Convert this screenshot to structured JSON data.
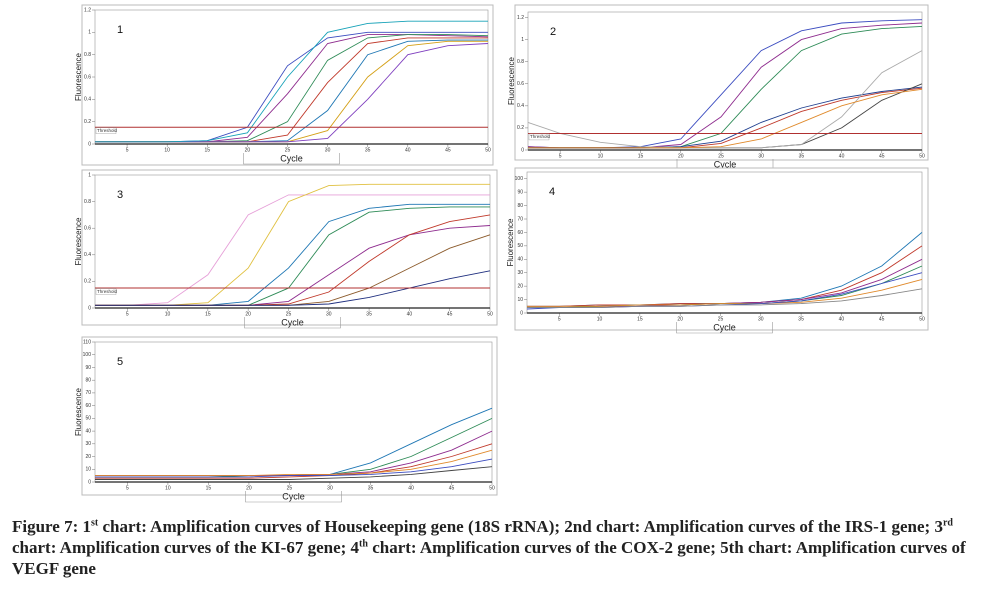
{
  "chart_data": [
    {
      "type": "line",
      "label": "1",
      "xlabel": "Cycle",
      "ylabel": "Fluorescence",
      "x": [
        1,
        5,
        10,
        15,
        20,
        25,
        30,
        35,
        40,
        45,
        50
      ],
      "xlim": [
        1,
        50
      ],
      "xticks": [
        5,
        10,
        15,
        20,
        25,
        30,
        35,
        40,
        45,
        50
      ],
      "ylim": [
        0,
        1.2
      ],
      "yticks": [
        0,
        0.2,
        0.4,
        0.6,
        0.8,
        1,
        1.2
      ],
      "threshold": {
        "value": 0.15,
        "label": "Threshold",
        "color": "#b03030"
      },
      "series": [
        {
          "color": "#3b4cc0",
          "values": [
            0.02,
            0.02,
            0.02,
            0.03,
            0.15,
            0.7,
            0.95,
            1.0,
            1.0,
            1.0,
            1.0
          ]
        },
        {
          "color": "#8e2c8e",
          "values": [
            0.02,
            0.02,
            0.02,
            0.02,
            0.06,
            0.45,
            0.9,
            0.98,
            0.98,
            0.97,
            0.96
          ]
        },
        {
          "color": "#2e8b57",
          "values": [
            0.02,
            0.02,
            0.02,
            0.02,
            0.03,
            0.2,
            0.75,
            0.95,
            0.98,
            0.98,
            0.97
          ]
        },
        {
          "color": "#c0392b",
          "values": [
            0.02,
            0.02,
            0.02,
            0.02,
            0.02,
            0.08,
            0.55,
            0.9,
            0.95,
            0.95,
            0.95
          ]
        },
        {
          "color": "#1f77b4",
          "values": [
            0.02,
            0.02,
            0.02,
            0.02,
            0.02,
            0.03,
            0.3,
            0.8,
            0.92,
            0.93,
            0.93
          ]
        },
        {
          "color": "#d4a017",
          "values": [
            0.02,
            0.02,
            0.02,
            0.02,
            0.02,
            0.02,
            0.12,
            0.6,
            0.88,
            0.92,
            0.92
          ]
        },
        {
          "color": "#7f3fbf",
          "values": [
            0.02,
            0.02,
            0.02,
            0.02,
            0.02,
            0.02,
            0.05,
            0.4,
            0.8,
            0.88,
            0.9
          ]
        },
        {
          "color": "#17a2b8",
          "values": [
            0.02,
            0.02,
            0.02,
            0.03,
            0.1,
            0.6,
            1.0,
            1.08,
            1.1,
            1.1,
            1.1
          ]
        }
      ]
    },
    {
      "type": "line",
      "label": "2",
      "xlabel": "Cycle",
      "ylabel": "Fluorescence",
      "x": [
        1,
        5,
        10,
        15,
        20,
        25,
        30,
        35,
        40,
        45,
        50
      ],
      "xlim": [
        1,
        50
      ],
      "xticks": [
        5,
        10,
        15,
        20,
        25,
        30,
        35,
        40,
        45,
        50
      ],
      "ylim": [
        0,
        1.25
      ],
      "yticks": [
        0,
        0.2,
        0.4,
        0.6,
        0.8,
        1,
        1.2
      ],
      "threshold": {
        "value": 0.15,
        "label": "Threshold",
        "color": "#b03030"
      },
      "series": [
        {
          "color": "#3b4cc0",
          "values": [
            0.03,
            0.02,
            0.02,
            0.03,
            0.1,
            0.5,
            0.9,
            1.08,
            1.15,
            1.17,
            1.18
          ]
        },
        {
          "color": "#8e2c8e",
          "values": [
            0.03,
            0.02,
            0.02,
            0.02,
            0.05,
            0.3,
            0.75,
            1.0,
            1.1,
            1.13,
            1.15
          ]
        },
        {
          "color": "#2e8b57",
          "values": [
            0.02,
            0.02,
            0.02,
            0.02,
            0.03,
            0.15,
            0.55,
            0.9,
            1.05,
            1.1,
            1.12
          ]
        },
        {
          "color": "#c0392b",
          "values": [
            0.02,
            0.02,
            0.02,
            0.02,
            0.02,
            0.06,
            0.2,
            0.35,
            0.45,
            0.52,
            0.56
          ]
        },
        {
          "color": "#1f3f8f",
          "values": [
            0.02,
            0.02,
            0.02,
            0.02,
            0.03,
            0.08,
            0.25,
            0.38,
            0.47,
            0.53,
            0.57
          ]
        },
        {
          "color": "#444444",
          "values": [
            0.02,
            0.02,
            0.02,
            0.02,
            0.02,
            0.02,
            0.02,
            0.05,
            0.2,
            0.45,
            0.6
          ]
        },
        {
          "color": "#aaaaaa",
          "values": [
            0.25,
            0.15,
            0.07,
            0.03,
            0.02,
            0.02,
            0.02,
            0.05,
            0.3,
            0.7,
            0.9
          ]
        },
        {
          "color": "#e08a2c",
          "values": [
            0.02,
            0.02,
            0.02,
            0.02,
            0.02,
            0.03,
            0.1,
            0.25,
            0.4,
            0.5,
            0.55
          ]
        }
      ]
    },
    {
      "type": "line",
      "label": "3",
      "xlabel": "Cycle",
      "ylabel": "Fluorescence",
      "x": [
        1,
        5,
        10,
        15,
        20,
        25,
        30,
        35,
        40,
        45,
        50
      ],
      "xlim": [
        1,
        50
      ],
      "xticks": [
        5,
        10,
        15,
        20,
        25,
        30,
        35,
        40,
        45,
        50
      ],
      "ylim": [
        0,
        1.0
      ],
      "yticks": [
        0,
        0.2,
        0.4,
        0.6,
        0.8,
        1
      ],
      "threshold": {
        "value": 0.15,
        "label": "Threshold",
        "color": "#b03030"
      },
      "series": [
        {
          "color": "#e6a0d8",
          "values": [
            0.02,
            0.02,
            0.04,
            0.25,
            0.7,
            0.85,
            0.85,
            0.85,
            0.85,
            0.85,
            0.85
          ]
        },
        {
          "color": "#e0c040",
          "values": [
            0.02,
            0.02,
            0.02,
            0.04,
            0.3,
            0.8,
            0.92,
            0.93,
            0.93,
            0.93,
            0.93
          ]
        },
        {
          "color": "#1f77b4",
          "values": [
            0.02,
            0.02,
            0.02,
            0.02,
            0.05,
            0.3,
            0.65,
            0.75,
            0.78,
            0.78,
            0.78
          ]
        },
        {
          "color": "#2e8b57",
          "values": [
            0.02,
            0.02,
            0.02,
            0.02,
            0.02,
            0.15,
            0.55,
            0.72,
            0.75,
            0.76,
            0.76
          ]
        },
        {
          "color": "#8e2c8e",
          "values": [
            0.02,
            0.02,
            0.02,
            0.02,
            0.02,
            0.05,
            0.25,
            0.45,
            0.55,
            0.6,
            0.62
          ]
        },
        {
          "color": "#c0392b",
          "values": [
            0.02,
            0.02,
            0.02,
            0.02,
            0.02,
            0.03,
            0.12,
            0.35,
            0.55,
            0.65,
            0.7
          ]
        },
        {
          "color": "#8b5a2b",
          "values": [
            0.02,
            0.02,
            0.02,
            0.02,
            0.02,
            0.02,
            0.05,
            0.15,
            0.3,
            0.45,
            0.55
          ]
        },
        {
          "color": "#1f2f7f",
          "values": [
            0.02,
            0.02,
            0.02,
            0.02,
            0.02,
            0.02,
            0.03,
            0.08,
            0.15,
            0.22,
            0.28
          ]
        }
      ]
    },
    {
      "type": "line",
      "label": "4",
      "xlabel": "Cycle",
      "ylabel": "Fluorescence",
      "x": [
        1,
        5,
        10,
        15,
        20,
        25,
        30,
        35,
        40,
        45,
        50
      ],
      "xlim": [
        1,
        50
      ],
      "xticks": [
        5,
        10,
        15,
        20,
        25,
        30,
        35,
        40,
        45,
        50
      ],
      "ylim": [
        0,
        105
      ],
      "yticks": [
        0,
        10,
        20,
        30,
        40,
        50,
        60,
        70,
        80,
        90,
        100
      ],
      "series": [
        {
          "color": "#1f77b4",
          "values": [
            5,
            5,
            6,
            6,
            7,
            7,
            8,
            11,
            20,
            35,
            60
          ]
        },
        {
          "color": "#c0392b",
          "values": [
            5,
            5,
            6,
            6,
            7,
            7,
            8,
            10,
            17,
            30,
            50
          ]
        },
        {
          "color": "#8e2c8e",
          "values": [
            4,
            4,
            5,
            5,
            6,
            7,
            8,
            10,
            15,
            25,
            40
          ]
        },
        {
          "color": "#2e8b57",
          "values": [
            4,
            4,
            5,
            6,
            6,
            7,
            7,
            9,
            13,
            22,
            35
          ]
        },
        {
          "color": "#e08a2c",
          "values": [
            5,
            5,
            5,
            6,
            6,
            7,
            7,
            8,
            11,
            17,
            25
          ]
        },
        {
          "color": "#3b4cc0",
          "values": [
            3,
            4,
            4,
            5,
            5,
            6,
            7,
            9,
            14,
            22,
            30
          ]
        },
        {
          "color": "#888888",
          "values": [
            4,
            4,
            4,
            5,
            5,
            6,
            6,
            7,
            9,
            13,
            18
          ]
        }
      ]
    },
    {
      "type": "line",
      "label": "5",
      "xlabel": "Cycle",
      "ylabel": "Fluorescence",
      "x": [
        1,
        5,
        10,
        15,
        20,
        25,
        30,
        35,
        40,
        45,
        50
      ],
      "xlim": [
        1,
        50
      ],
      "xticks": [
        5,
        10,
        15,
        20,
        25,
        30,
        35,
        40,
        45,
        50
      ],
      "ylim": [
        0,
        110
      ],
      "yticks": [
        0,
        10,
        20,
        30,
        40,
        50,
        60,
        70,
        80,
        90,
        100,
        110
      ],
      "series": [
        {
          "color": "#1f77b4",
          "values": [
            5,
            5,
            5,
            5,
            5,
            5,
            6,
            15,
            30,
            45,
            58
          ]
        },
        {
          "color": "#2e8b57",
          "values": [
            4,
            4,
            4,
            4,
            5,
            5,
            6,
            10,
            20,
            35,
            50
          ]
        },
        {
          "color": "#8e2c8e",
          "values": [
            5,
            5,
            5,
            5,
            5,
            5,
            6,
            8,
            15,
            25,
            40
          ]
        },
        {
          "color": "#c0392b",
          "values": [
            3,
            3,
            3,
            3,
            3,
            4,
            5,
            7,
            12,
            20,
            30
          ]
        },
        {
          "color": "#e08a2c",
          "values": [
            5,
            5,
            5,
            5,
            5,
            6,
            6,
            7,
            10,
            16,
            25
          ]
        },
        {
          "color": "#3b4cc0",
          "values": [
            4,
            4,
            4,
            4,
            4,
            5,
            5,
            6,
            8,
            12,
            18
          ]
        },
        {
          "color": "#444444",
          "values": [
            2,
            2,
            2,
            2,
            2,
            2,
            3,
            4,
            6,
            9,
            12
          ]
        }
      ]
    }
  ],
  "caption": [
    "Figure 7: 1",
    "st",
    " chart: Amplification curves of Housekeeping gene (18S rRNA); 2nd chart: Amplification curves of the IRS-1 gene; 3",
    "rd",
    " chart: Amplification curves of the KI-67 gene; 4",
    "th",
    " chart: Amplification curves of the COX-2 gene; 5th chart: Amplification curves of VEGF gene"
  ]
}
